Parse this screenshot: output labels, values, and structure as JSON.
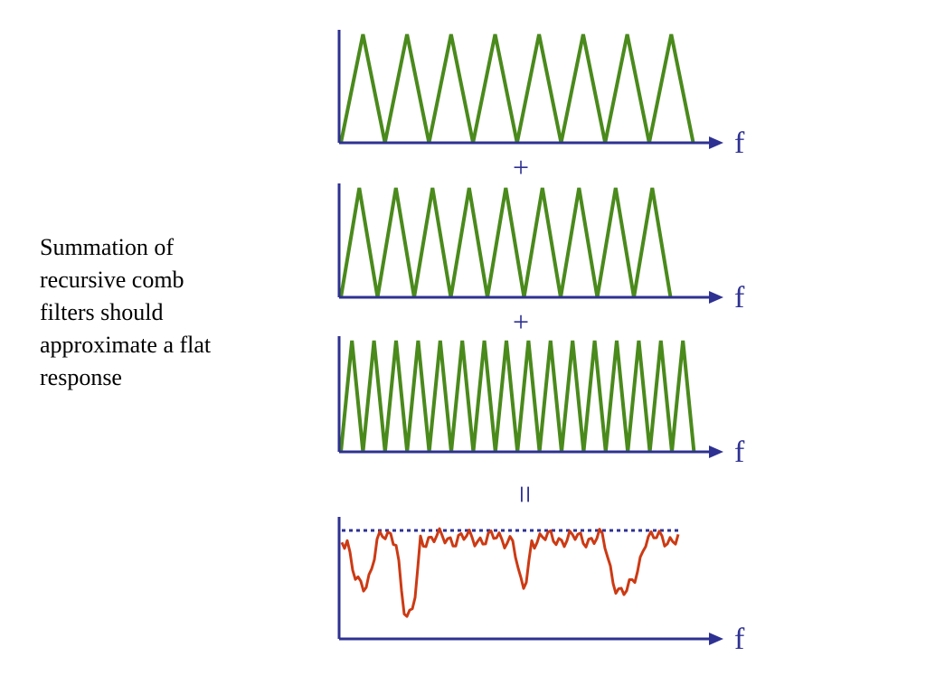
{
  "caption": {
    "lines": [
      "Summation of",
      "recursive comb",
      "filters should",
      "approximate a flat",
      "response"
    ]
  },
  "panels": [
    {
      "axis_label": "f"
    },
    {
      "axis_label": "f"
    },
    {
      "axis_label": "f"
    },
    {
      "axis_label": "f"
    }
  ],
  "operators": [
    "+",
    "+",
    "="
  ]
}
